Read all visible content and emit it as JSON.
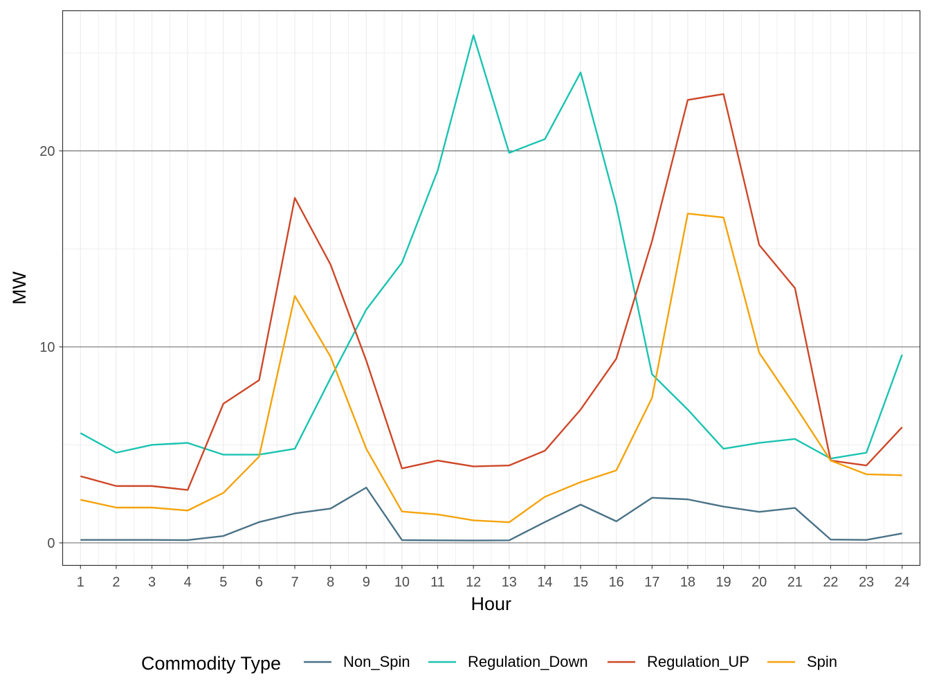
{
  "chart_data": {
    "type": "line",
    "xlabel": "Hour",
    "ylabel": "MW",
    "x": [
      1,
      2,
      3,
      4,
      5,
      6,
      7,
      8,
      9,
      10,
      11,
      12,
      13,
      14,
      15,
      16,
      17,
      18,
      19,
      20,
      21,
      22,
      23,
      24
    ],
    "x_ticks": [
      "1",
      "2",
      "3",
      "4",
      "5",
      "6",
      "7",
      "8",
      "9",
      "10",
      "11",
      "12",
      "13",
      "14",
      "15",
      "16",
      "17",
      "18",
      "19",
      "20",
      "21",
      "22",
      "23",
      "24"
    ],
    "xlim": [
      0.5,
      24.5
    ],
    "ylim": [
      -1.15,
      27.15
    ],
    "y_ticks": [
      0,
      10,
      20
    ],
    "y_tick_labels": [
      "0",
      "10",
      "20"
    ],
    "grid": true,
    "legend": {
      "title": "Commodity Type",
      "position": "bottom"
    },
    "series": [
      {
        "name": "Non_Spin",
        "color": "#4a7286",
        "values": [
          0.15,
          0.15,
          0.15,
          0.14,
          0.35,
          1.06,
          1.5,
          1.75,
          2.82,
          0.14,
          0.13,
          0.12,
          0.13,
          1.06,
          1.95,
          1.1,
          2.3,
          2.22,
          1.85,
          1.58,
          1.78,
          0.17,
          0.15,
          0.48
        ]
      },
      {
        "name": "Regulation_Down",
        "color": "#1ac3b0",
        "values": [
          5.6,
          4.6,
          5.0,
          5.1,
          4.5,
          4.5,
          4.8,
          8.4,
          11.9,
          14.3,
          19.0,
          25.9,
          19.9,
          20.6,
          24.0,
          17.2,
          8.6,
          6.8,
          4.8,
          5.1,
          5.3,
          4.3,
          4.6,
          9.6
        ]
      },
      {
        "name": "Regulation_UP",
        "color": "#cd4728",
        "values": [
          3.4,
          2.9,
          2.9,
          2.7,
          7.1,
          8.3,
          17.6,
          14.2,
          9.3,
          3.8,
          4.2,
          3.9,
          3.95,
          4.7,
          6.8,
          9.4,
          15.4,
          22.6,
          22.9,
          15.2,
          13.0,
          4.2,
          3.95,
          5.9
        ]
      },
      {
        "name": "Spin",
        "color": "#f4a30b",
        "values": [
          2.2,
          1.8,
          1.8,
          1.65,
          2.55,
          4.4,
          12.6,
          9.5,
          4.8,
          1.6,
          1.45,
          1.15,
          1.05,
          2.35,
          3.1,
          3.7,
          7.4,
          16.8,
          16.6,
          9.7,
          7.0,
          4.2,
          3.5,
          3.45
        ]
      }
    ]
  }
}
